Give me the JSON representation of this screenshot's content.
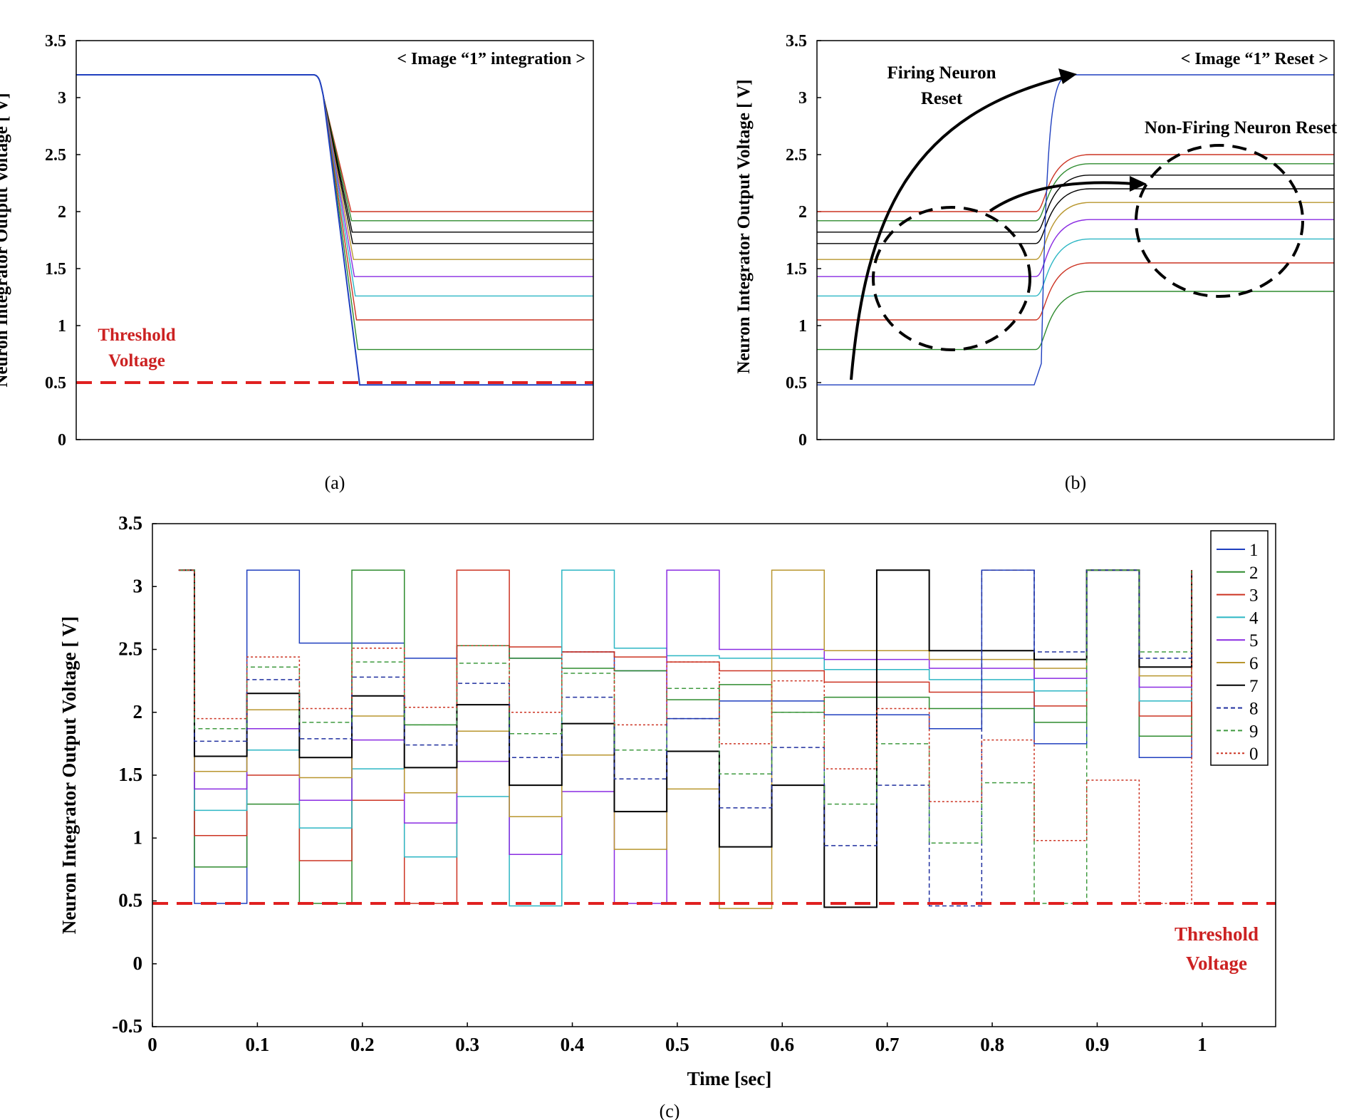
{
  "colors": {
    "frame": "#000000",
    "threshold": "#e02020",
    "annotation_red": "#cc2222",
    "series": {
      "1": "#1f3fbf",
      "2": "#2e8b2e",
      "3": "#cc3322",
      "4": "#2cb6c4",
      "5": "#8a2be2",
      "6": "#b8962e",
      "7": "#000000",
      "8": "#1f2f9f",
      "9": "#3f9a3f",
      "0": "#cc3322"
    }
  },
  "chart_data": [
    {
      "id": "a",
      "type": "line",
      "caption": "(a)",
      "title": "< Image “1” integration >",
      "ylabel": "Neuron Integrator Output Voltage [ V]",
      "xlabel": "",
      "ylim": [
        0,
        3.5
      ],
      "yticks": [
        "0",
        "0.5",
        "1",
        "1.5",
        "2",
        "2.5",
        "3",
        "3.5"
      ],
      "grid": false,
      "threshold": {
        "value": 0.5,
        "label_line1": "Threshold",
        "label_line2": "Voltage"
      },
      "initial_value": 3.2,
      "final_values": [
        2.0,
        1.92,
        1.82,
        1.72,
        1.58,
        1.43,
        1.26,
        1.05,
        0.79,
        0.48
      ],
      "series_colors": [
        "3",
        "2",
        "7",
        "7",
        "6",
        "5",
        "4",
        "3",
        "2",
        "1"
      ]
    },
    {
      "id": "b",
      "type": "line",
      "caption": "(b)",
      "title": "< Image “1” Reset >",
      "ylabel": "Neuron Integrator Output Voltage [ V]",
      "xlabel": "",
      "ylim": [
        0,
        3.5
      ],
      "yticks": [
        "0",
        "0.5",
        "1",
        "1.5",
        "2",
        "2.5",
        "3",
        "3.5"
      ],
      "grid": false,
      "annotations": {
        "firing_line1": "Firing Neuron",
        "firing_line2": "Reset",
        "nonfiring": "Non-Firing Neuron Reset"
      },
      "series": [
        {
          "color": "3",
          "before": 2.0,
          "after": 2.5
        },
        {
          "color": "2",
          "before": 1.92,
          "after": 2.42
        },
        {
          "color": "7",
          "before": 1.82,
          "after": 2.32
        },
        {
          "color": "7",
          "before": 1.72,
          "after": 2.2
        },
        {
          "color": "6",
          "before": 1.58,
          "after": 2.08
        },
        {
          "color": "5",
          "before": 1.43,
          "after": 1.93
        },
        {
          "color": "4",
          "before": 1.26,
          "after": 1.76
        },
        {
          "color": "3",
          "before": 1.05,
          "after": 1.55
        },
        {
          "color": "2",
          "before": 0.79,
          "after": 1.3
        },
        {
          "color": "1",
          "before": 0.48,
          "after": 3.2
        }
      ]
    },
    {
      "id": "c",
      "type": "line",
      "caption": "(c)",
      "title": "",
      "xlabel": "Time [sec]",
      "ylabel": "Neuron Integrator Output Voltage [ V]",
      "xlim": [
        0,
        1.07
      ],
      "ylim": [
        -0.5,
        3.5
      ],
      "xticks": [
        "0",
        "0.1",
        "0.2",
        "0.3",
        "0.4",
        "0.5",
        "0.6",
        "0.7",
        "0.8",
        "0.9",
        "1"
      ],
      "yticks": [
        "-0.5",
        "0",
        "0.5",
        "1",
        "1.5",
        "2",
        "2.5",
        "3",
        "3.5"
      ],
      "grid": false,
      "legend_position": "top-right",
      "threshold": {
        "value": 0.48,
        "label_line1": "Threshold",
        "label_line2": "Voltage"
      },
      "reset_level": 3.13,
      "legend": [
        "1",
        "2",
        "3",
        "4",
        "5",
        "6",
        "7",
        "8",
        "9",
        "0"
      ],
      "windows": [
        {
          "t0": 0.04,
          "t1": 0.09,
          "winner": "1",
          "levels": {
            "1": 0.48,
            "2": 0.77,
            "3": 1.02,
            "4": 1.22,
            "5": 1.39,
            "6": 1.53,
            "7": 1.65,
            "8": 1.77,
            "9": 1.87,
            "0": 1.95
          }
        },
        {
          "t0": 0.09,
          "t1": 0.14,
          "winner": "1",
          "levels": {
            "1": 3.13,
            "2": 1.27,
            "3": 1.5,
            "4": 1.7,
            "5": 1.87,
            "6": 2.02,
            "7": 2.15,
            "8": 2.26,
            "9": 2.36,
            "0": 2.44
          }
        },
        {
          "t0": 0.14,
          "t1": 0.19,
          "winner": "2",
          "levels": {
            "1": 2.55,
            "2": 0.48,
            "3": 0.82,
            "4": 1.08,
            "5": 1.3,
            "6": 1.48,
            "7": 1.64,
            "8": 1.79,
            "9": 1.92,
            "0": 2.03
          }
        },
        {
          "t0": 0.19,
          "t1": 0.24,
          "winner": "2",
          "levels": {
            "1": 2.55,
            "2": 3.13,
            "3": 1.3,
            "4": 1.55,
            "5": 1.78,
            "6": 1.97,
            "7": 2.13,
            "8": 2.28,
            "9": 2.4,
            "0": 2.51
          }
        },
        {
          "t0": 0.24,
          "t1": 0.29,
          "winner": "3",
          "levels": {
            "1": 2.43,
            "2": 1.9,
            "3": 0.48,
            "4": 0.85,
            "5": 1.12,
            "6": 1.36,
            "7": 1.56,
            "8": 1.74,
            "9": 1.9,
            "0": 2.04
          }
        },
        {
          "t0": 0.29,
          "t1": 0.34,
          "winner": "3",
          "levels": {
            "1": 2.53,
            "2": 2.53,
            "3": 3.13,
            "4": 1.33,
            "5": 1.61,
            "6": 1.85,
            "7": 2.06,
            "8": 2.23,
            "9": 2.39,
            "0": 2.53
          }
        },
        {
          "t0": 0.34,
          "t1": 0.39,
          "winner": "4",
          "levels": {
            "1": 2.43,
            "2": 2.43,
            "3": 2.52,
            "4": 0.46,
            "5": 0.87,
            "6": 1.17,
            "7": 1.42,
            "8": 1.64,
            "9": 1.83,
            "0": 2.0
          }
        },
        {
          "t0": 0.39,
          "t1": 0.44,
          "winner": "4",
          "levels": {
            "1": 2.48,
            "2": 2.35,
            "3": 2.48,
            "4": 3.13,
            "5": 1.37,
            "6": 1.66,
            "7": 1.91,
            "8": 2.12,
            "9": 2.31,
            "0": 2.48
          }
        },
        {
          "t0": 0.44,
          "t1": 0.49,
          "winner": "5",
          "levels": {
            "1": 2.33,
            "2": 2.33,
            "3": 2.44,
            "4": 2.51,
            "5": 0.48,
            "6": 0.91,
            "7": 1.21,
            "8": 1.47,
            "9": 1.7,
            "0": 1.9
          }
        },
        {
          "t0": 0.49,
          "t1": 0.54,
          "winner": "5",
          "levels": {
            "1": 1.95,
            "2": 2.1,
            "3": 2.4,
            "4": 2.45,
            "5": 3.13,
            "6": 1.39,
            "7": 1.69,
            "8": 1.95,
            "9": 2.19,
            "0": 2.4
          }
        },
        {
          "t0": 0.54,
          "t1": 0.59,
          "winner": "6",
          "levels": {
            "1": 2.09,
            "2": 2.22,
            "3": 2.33,
            "4": 2.43,
            "5": 2.5,
            "6": 0.44,
            "7": 0.93,
            "8": 1.24,
            "9": 1.51,
            "0": 1.75
          }
        },
        {
          "t0": 0.59,
          "t1": 0.64,
          "winner": "6",
          "levels": {
            "1": 2.09,
            "2": 2.0,
            "3": 2.33,
            "4": 2.43,
            "5": 2.5,
            "6": 3.13,
            "7": 1.42,
            "8": 1.72,
            "9": 2.0,
            "0": 2.25
          }
        },
        {
          "t0": 0.64,
          "t1": 0.69,
          "winner": "7",
          "levels": {
            "1": 1.98,
            "2": 2.12,
            "3": 2.24,
            "4": 2.34,
            "5": 2.42,
            "6": 2.49,
            "7": 0.45,
            "8": 0.94,
            "9": 1.27,
            "0": 1.55
          }
        },
        {
          "t0": 0.69,
          "t1": 0.74,
          "winner": "7",
          "levels": {
            "1": 1.98,
            "2": 2.12,
            "3": 2.24,
            "4": 2.34,
            "5": 2.42,
            "6": 2.49,
            "7": 3.13,
            "8": 1.42,
            "9": 1.75,
            "0": 2.03
          }
        },
        {
          "t0": 0.74,
          "t1": 0.79,
          "winner": "8",
          "levels": {
            "1": 1.87,
            "2": 2.03,
            "3": 2.16,
            "4": 2.26,
            "5": 2.35,
            "6": 2.42,
            "7": 2.49,
            "8": 0.46,
            "9": 0.96,
            "0": 1.29
          }
        },
        {
          "t0": 0.79,
          "t1": 0.84,
          "winner": "8",
          "levels": {
            "1": 3.13,
            "2": 2.03,
            "3": 2.16,
            "4": 2.26,
            "5": 2.35,
            "6": 2.42,
            "7": 2.49,
            "8": 3.13,
            "9": 1.44,
            "0": 1.78
          }
        },
        {
          "t0": 0.84,
          "t1": 0.89,
          "winner": "9",
          "levels": {
            "1": 1.75,
            "2": 1.92,
            "3": 2.05,
            "4": 2.17,
            "5": 2.27,
            "6": 2.35,
            "7": 2.42,
            "8": 2.48,
            "9": 0.48,
            "0": 0.98
          }
        },
        {
          "t0": 0.89,
          "t1": 0.94,
          "winner": "9",
          "levels": {
            "1": 3.13,
            "2": 3.13,
            "3": 3.13,
            "4": 3.13,
            "5": 3.13,
            "6": 3.13,
            "7": 3.13,
            "8": 3.13,
            "9": 3.13,
            "0": 1.46
          }
        },
        {
          "t0": 0.94,
          "t1": 0.99,
          "winner": "0",
          "levels": {
            "1": 1.64,
            "2": 1.81,
            "3": 1.97,
            "4": 2.09,
            "5": 2.2,
            "6": 2.29,
            "7": 2.36,
            "8": 2.43,
            "9": 2.48,
            "0": 0.48
          }
        }
      ]
    }
  ]
}
